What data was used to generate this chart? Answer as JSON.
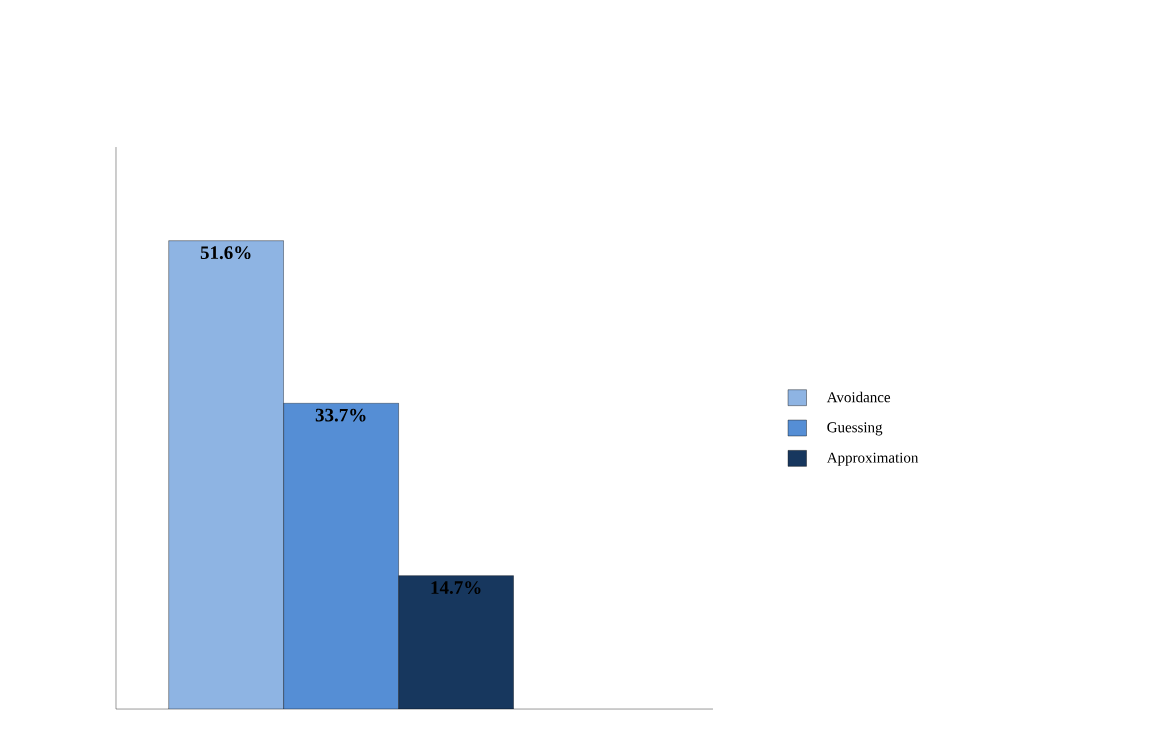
{
  "chart_data": {
    "type": "bar",
    "categories": [
      null
    ],
    "series": [
      {
        "name": "Avoidance",
        "color": "#8eb4e3",
        "values": [
          51.6
        ],
        "value_labels": [
          "51.6%"
        ]
      },
      {
        "name": "Guessing",
        "color": "#558ed5",
        "values": [
          33.7
        ],
        "value_labels": [
          "33.7%"
        ]
      },
      {
        "name": "Approximation",
        "color": "#17375e",
        "values": [
          14.7
        ],
        "value_labels": [
          "14.7%"
        ]
      }
    ],
    "legend": "right"
  }
}
